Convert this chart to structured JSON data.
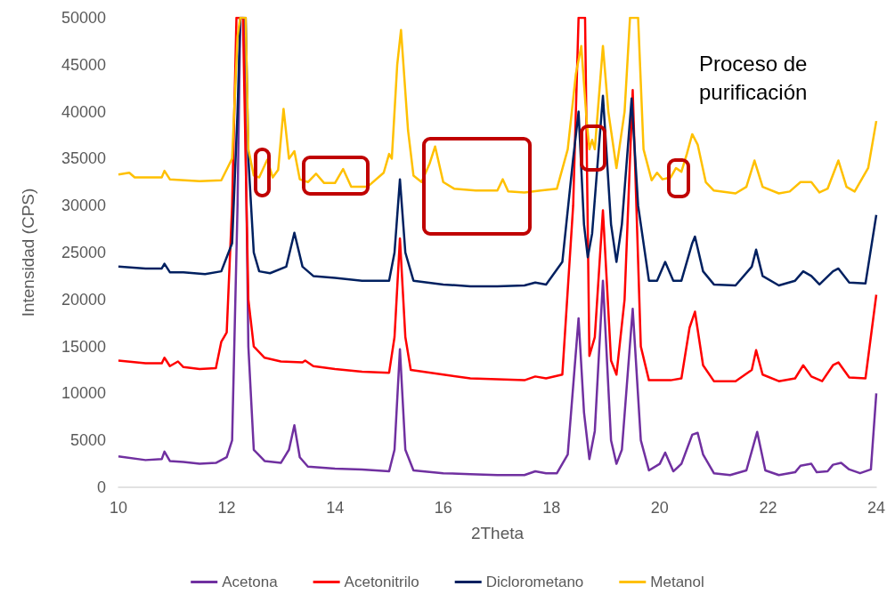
{
  "chart_data": {
    "type": "line",
    "xlabel": "2Theta",
    "ylabel": "Intensidad (CPS)",
    "annotations": [
      "Proceso de purificación"
    ],
    "xlim": [
      10,
      24
    ],
    "xticks": [
      10,
      12,
      14,
      16,
      18,
      20,
      22,
      24
    ],
    "ylim": [
      0,
      50000
    ],
    "yticks": [
      0,
      5000,
      10000,
      15000,
      20000,
      25000,
      30000,
      35000,
      40000,
      45000,
      50000
    ],
    "grid": false,
    "legend": "bottom",
    "marker": "none",
    "line_style": "solid",
    "series": [
      {
        "name": "Acetona",
        "color": "#7030a0",
        "x": [
          10,
          10.5,
          10.8,
          10.85,
          10.95,
          11.2,
          11.5,
          11.8,
          12.0,
          12.1,
          12.2,
          12.25,
          12.32,
          12.4,
          12.5,
          12.7,
          13.0,
          13.15,
          13.25,
          13.35,
          13.5,
          14,
          14.5,
          15.0,
          15.1,
          15.2,
          15.3,
          15.45,
          16,
          16.5,
          17,
          17.5,
          17.7,
          17.9,
          18.1,
          18.3,
          18.5,
          18.6,
          18.7,
          18.8,
          18.95,
          19.1,
          19.2,
          19.3,
          19.5,
          19.65,
          19.8,
          20.0,
          20.1,
          20.25,
          20.4,
          20.6,
          20.7,
          20.8,
          21.0,
          21.3,
          21.6,
          21.8,
          21.95,
          22.2,
          22.5,
          22.6,
          22.8,
          22.9,
          23.1,
          23.2,
          23.35,
          23.5,
          23.7,
          23.9,
          24.0
        ],
        "values": [
          3300,
          2900,
          3000,
          3800,
          2800,
          2700,
          2500,
          2600,
          3200,
          5000,
          30000,
          50000,
          50000,
          15000,
          4000,
          2800,
          2600,
          4000,
          6600,
          3200,
          2200,
          2000,
          1900,
          1700,
          4000,
          14700,
          4000,
          1800,
          1500,
          1400,
          1300,
          1300,
          1700,
          1500,
          1500,
          3500,
          18000,
          8000,
          3000,
          6000,
          22000,
          5000,
          2500,
          4000,
          19000,
          5000,
          1800,
          2500,
          3700,
          1700,
          2500,
          5600,
          5800,
          3500,
          1500,
          1300,
          1800,
          5900,
          1800,
          1300,
          1600,
          2300,
          2500,
          1600,
          1700,
          2400,
          2600,
          1900,
          1500,
          1900,
          10000
        ]
      },
      {
        "name": "Acetonitrilo",
        "color": "#ff0000",
        "x": [
          10,
          10.5,
          10.8,
          10.85,
          10.95,
          11.1,
          11.2,
          11.5,
          11.8,
          11.9,
          12.0,
          12.1,
          12.18,
          12.3,
          12.4,
          12.5,
          12.7,
          13,
          13.4,
          13.45,
          13.6,
          14,
          14.5,
          15.0,
          15.1,
          15.2,
          15.3,
          15.4,
          16,
          16.5,
          17,
          17.5,
          17.7,
          17.9,
          18.2,
          18.4,
          18.5,
          18.62,
          18.7,
          18.8,
          18.95,
          19.1,
          19.2,
          19.35,
          19.5,
          19.65,
          19.8,
          20.2,
          20.4,
          20.55,
          20.65,
          20.8,
          21.0,
          21.4,
          21.7,
          21.78,
          21.9,
          22.2,
          22.5,
          22.65,
          22.8,
          23.0,
          23.2,
          23.3,
          23.5,
          23.8,
          24.0
        ],
        "values": [
          13500,
          13200,
          13200,
          13800,
          12900,
          13400,
          12800,
          12600,
          12700,
          15500,
          16500,
          30000,
          50000,
          50000,
          20000,
          15000,
          13800,
          13400,
          13300,
          13500,
          12900,
          12600,
          12300,
          12200,
          16000,
          26500,
          16000,
          12500,
          12000,
          11600,
          11500,
          11400,
          11800,
          11600,
          12000,
          30000,
          50000,
          50000,
          14000,
          16000,
          29500,
          13500,
          12000,
          20000,
          42300,
          15000,
          11400,
          11400,
          11600,
          17000,
          18700,
          13000,
          11300,
          11300,
          12500,
          14600,
          12000,
          11300,
          11600,
          13000,
          11800,
          11300,
          13000,
          13300,
          11700,
          11600,
          20500
        ]
      },
      {
        "name": "Diclorometano",
        "color": "#002060",
        "x": [
          10,
          10.5,
          10.8,
          10.85,
          10.95,
          11.2,
          11.6,
          11.9,
          12.1,
          12.2,
          12.25,
          12.35,
          12.4,
          12.5,
          12.6,
          12.8,
          13.1,
          13.25,
          13.4,
          13.6,
          14,
          14.5,
          15.0,
          15.1,
          15.2,
          15.3,
          15.45,
          16,
          16.5,
          17,
          17.5,
          17.7,
          17.9,
          18.2,
          18.4,
          18.5,
          18.6,
          18.67,
          18.75,
          18.95,
          19.1,
          19.2,
          19.3,
          19.48,
          19.6,
          19.8,
          19.95,
          20.1,
          20.25,
          20.4,
          20.6,
          20.65,
          20.8,
          21.0,
          21.4,
          21.7,
          21.78,
          21.9,
          22.2,
          22.5,
          22.65,
          22.8,
          22.95,
          23.2,
          23.3,
          23.5,
          23.8,
          24.0
        ],
        "values": [
          23500,
          23300,
          23300,
          23800,
          22900,
          22900,
          22700,
          23000,
          26000,
          40000,
          50000,
          50000,
          35000,
          25000,
          23000,
          22800,
          23500,
          27100,
          23500,
          22500,
          22300,
          22000,
          22000,
          25000,
          32800,
          25000,
          22000,
          21600,
          21400,
          21400,
          21500,
          21800,
          21600,
          24000,
          35000,
          40000,
          28000,
          24500,
          27000,
          41700,
          28000,
          24000,
          28000,
          41400,
          30000,
          22000,
          22000,
          24000,
          22000,
          22000,
          26000,
          26700,
          23000,
          21600,
          21500,
          23500,
          25300,
          22500,
          21500,
          22000,
          23000,
          22500,
          21600,
          23000,
          23300,
          21800,
          21700,
          29000
        ]
      },
      {
        "name": "Metanol",
        "color": "#ffc000",
        "x": [
          10,
          10.2,
          10.3,
          10.8,
          10.85,
          10.95,
          11.5,
          11.9,
          12.1,
          12.2,
          12.25,
          12.35,
          12.4,
          12.5,
          12.6,
          12.75,
          12.85,
          12.95,
          13.05,
          13.15,
          13.25,
          13.35,
          13.5,
          13.65,
          13.8,
          14.0,
          14.15,
          14.3,
          14.6,
          14.9,
          15.0,
          15.05,
          15.15,
          15.22,
          15.35,
          15.45,
          15.6,
          15.75,
          15.85,
          16.0,
          16.2,
          16.6,
          17.0,
          17.1,
          17.2,
          17.5,
          17.8,
          18.1,
          18.3,
          18.45,
          18.55,
          18.65,
          18.7,
          18.75,
          18.8,
          18.95,
          19.05,
          19.2,
          19.35,
          19.45,
          19.6,
          19.7,
          19.85,
          19.95,
          20.05,
          20.2,
          20.3,
          20.4,
          20.5,
          20.6,
          20.7,
          20.85,
          21.0,
          21.4,
          21.6,
          21.75,
          21.9,
          22.2,
          22.4,
          22.6,
          22.8,
          22.95,
          23.1,
          23.3,
          23.45,
          23.6,
          23.85,
          24.0
        ],
        "values": [
          33300,
          33500,
          33000,
          33000,
          33700,
          32800,
          32600,
          32700,
          35000,
          48000,
          50000,
          50000,
          36000,
          33200,
          33000,
          34900,
          33000,
          33800,
          40300,
          35000,
          35800,
          32800,
          32500,
          33400,
          32400,
          32400,
          33900,
          32000,
          32000,
          33500,
          35500,
          35000,
          45000,
          48700,
          38000,
          33200,
          32500,
          34500,
          36300,
          32500,
          31800,
          31600,
          31600,
          32800,
          31500,
          31400,
          31600,
          31800,
          36000,
          44000,
          47000,
          39000,
          36000,
          37000,
          36000,
          47000,
          40000,
          34000,
          40000,
          50000,
          50000,
          36000,
          32700,
          33500,
          32800,
          33000,
          34000,
          33600,
          35500,
          37600,
          36500,
          32500,
          31600,
          31300,
          32000,
          34800,
          32000,
          31300,
          31500,
          32500,
          32500,
          31400,
          31800,
          34800,
          32000,
          31500,
          34000,
          39000
        ]
      }
    ]
  }
}
